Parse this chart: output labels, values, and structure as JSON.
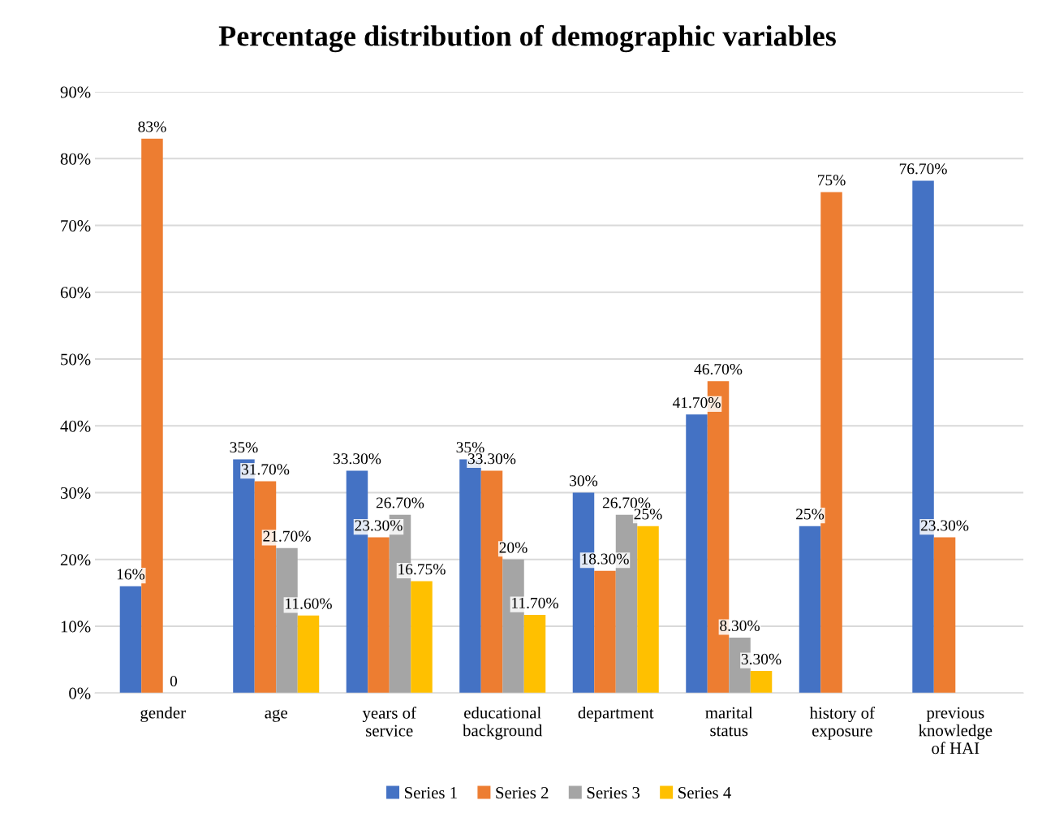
{
  "chart_data": {
    "type": "bar",
    "title": "Percentage distribution of demographic variables",
    "categories": [
      "gender",
      "age",
      "years of\nservice",
      "educational\nbackground",
      "department",
      "marital\nstatus",
      "history of\nexposure",
      "previous\nknowledge\nof HAI"
    ],
    "series": [
      {
        "name": "Series 1",
        "color": "#4472c4",
        "values": [
          16,
          35,
          33.3,
          35,
          30,
          41.7,
          25,
          76.7
        ],
        "value_labels": [
          "16%",
          "35%",
          "33.30%",
          "35%",
          "30%",
          "41.70%",
          "25%",
          "76.70%"
        ]
      },
      {
        "name": "Series 2",
        "color": "#ed7d31",
        "values": [
          83,
          31.7,
          23.3,
          33.3,
          18.3,
          46.7,
          75,
          23.3
        ],
        "value_labels": [
          "83%",
          "31.70%",
          "23.30%",
          "33.30%",
          "18.30%",
          "46.70%",
          "75%",
          "23.30%"
        ]
      },
      {
        "name": "Series 3",
        "color": "#a5a5a5",
        "values": [
          0,
          21.7,
          26.7,
          20,
          26.7,
          8.3,
          null,
          null
        ],
        "value_labels": [
          "0",
          "21.70%",
          "26.70%",
          "20%",
          "26.70%",
          "8.30%",
          null,
          null
        ]
      },
      {
        "name": "Series 4",
        "color": "#ffc000",
        "values": [
          null,
          11.6,
          16.75,
          11.7,
          25,
          3.3,
          null,
          null
        ],
        "value_labels": [
          null,
          "11.60%",
          "16.75%",
          "11.70%",
          "25%",
          "3.30%",
          null,
          null
        ]
      }
    ],
    "ylim": [
      0,
      90
    ],
    "yticks": [
      {
        "value": 0,
        "label": "0%"
      },
      {
        "value": 10,
        "label": "10%"
      },
      {
        "value": 20,
        "label": "20%"
      },
      {
        "value": 30,
        "label": "30%"
      },
      {
        "value": 40,
        "label": "40%"
      },
      {
        "value": 50,
        "label": "50%"
      },
      {
        "value": 60,
        "label": "60%"
      },
      {
        "value": 70,
        "label": "70%"
      },
      {
        "value": 80,
        "label": "80%"
      },
      {
        "value": 90,
        "label": "90%"
      }
    ],
    "grid": "y",
    "legend": "bottom"
  }
}
